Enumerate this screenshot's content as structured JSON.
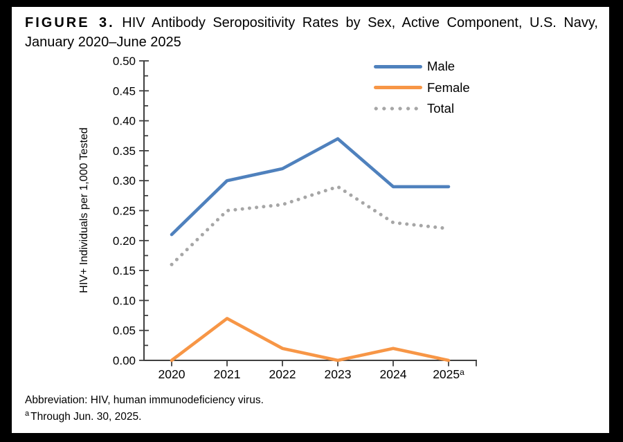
{
  "figure": {
    "label": "FIGURE 3.",
    "title_line1_rest": "HIV Antibody Seropositivity Rates by Sex, Active Component, U.S. Navy,",
    "title_line2": "January 2020–June 2025"
  },
  "footnotes": {
    "abbreviation": "Abbreviation: HIV, human immunodeficiency virus.",
    "note_marker": "a",
    "note_text": "Through Jun. 30, 2025."
  },
  "chart_data": {
    "type": "line",
    "title": "FIGURE 3. HIV Antibody Seropositivity Rates by Sex, Active Component, U.S. Navy, January 2020–June 2025",
    "categories": [
      "2020",
      "2021",
      "2022",
      "2023",
      "2024",
      "2025"
    ],
    "last_category_superscript": "a",
    "series": [
      {
        "name": "Male",
        "color": "#4F81BD",
        "line_style": "solid",
        "values": [
          0.21,
          0.3,
          0.32,
          0.37,
          0.29,
          0.29
        ]
      },
      {
        "name": "Female",
        "color": "#F79646",
        "line_style": "solid",
        "values": [
          0.0,
          0.07,
          0.02,
          0.0,
          0.02,
          0.0
        ]
      },
      {
        "name": "Total",
        "color": "#A6A6A6",
        "line_style": "dotted",
        "values": [
          0.16,
          0.25,
          0.26,
          0.29,
          0.23,
          0.22
        ]
      }
    ],
    "xlabel": "",
    "ylabel": "HIV+ Individuals per 1,000 Tested",
    "ylim": [
      0.0,
      0.5
    ],
    "ytick_step": 0.05,
    "ytick_labels": [
      "0.00",
      "0.05",
      "0.10",
      "0.15",
      "0.20",
      "0.25",
      "0.30",
      "0.35",
      "0.40",
      "0.45",
      "0.50"
    ],
    "grid": false,
    "legend_position": "top-right",
    "axis_color": "#3F3F3F",
    "text_color": "#000000"
  }
}
